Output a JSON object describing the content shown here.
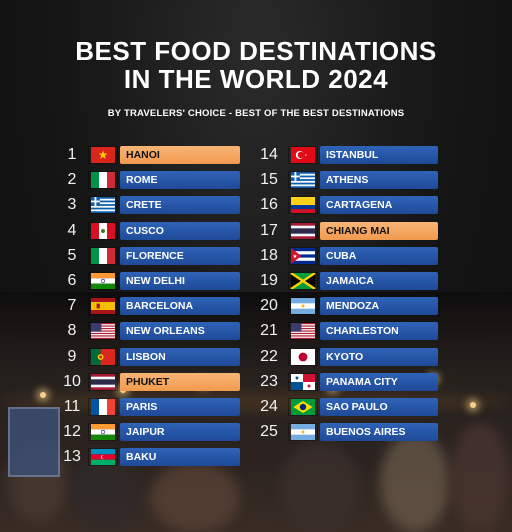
{
  "header": {
    "title_line1": "BEST FOOD DESTINATIONS",
    "title_line2": "IN THE WORLD 2024",
    "subtitle": "BY TRAVELERS' CHOICE - BEST OF THE BEST DESTINATIONS"
  },
  "colors": {
    "bar_default": "#2563b5",
    "bar_highlight": "#f4a45c"
  },
  "left_column": [
    {
      "rank": "1",
      "name": "HANOI",
      "flag_icon": "vietnam-flag-icon",
      "highlight": true
    },
    {
      "rank": "2",
      "name": "ROME",
      "flag_icon": "italy-flag-icon",
      "highlight": false
    },
    {
      "rank": "3",
      "name": "CRETE",
      "flag_icon": "greece-flag-icon",
      "highlight": false
    },
    {
      "rank": "4",
      "name": "CUSCO",
      "flag_icon": "peru-flag-icon",
      "highlight": false
    },
    {
      "rank": "5",
      "name": "FLORENCE",
      "flag_icon": "italy-flag-icon",
      "highlight": false
    },
    {
      "rank": "6",
      "name": "NEW DELHI",
      "flag_icon": "india-flag-icon",
      "highlight": false
    },
    {
      "rank": "7",
      "name": "BARCELONA",
      "flag_icon": "spain-flag-icon",
      "highlight": false
    },
    {
      "rank": "8",
      "name": "NEW ORLEANS",
      "flag_icon": "usa-flag-icon",
      "highlight": false
    },
    {
      "rank": "9",
      "name": "LISBON",
      "flag_icon": "portugal-flag-icon",
      "highlight": false
    },
    {
      "rank": "10",
      "name": "PHUKET",
      "flag_icon": "thailand-flag-icon",
      "highlight": true
    },
    {
      "rank": "11",
      "name": "PARIS",
      "flag_icon": "france-flag-icon",
      "highlight": false
    },
    {
      "rank": "12",
      "name": "JAIPUR",
      "flag_icon": "india-flag-icon",
      "highlight": false
    },
    {
      "rank": "13",
      "name": "BAKU",
      "flag_icon": "azerbaijan-flag-icon",
      "highlight": false
    }
  ],
  "right_column": [
    {
      "rank": "14",
      "name": "ISTANBUL",
      "flag_icon": "turkey-flag-icon",
      "highlight": false
    },
    {
      "rank": "15",
      "name": "ATHENS",
      "flag_icon": "greece-flag-icon",
      "highlight": false
    },
    {
      "rank": "16",
      "name": "CARTAGENA",
      "flag_icon": "colombia-flag-icon",
      "highlight": false
    },
    {
      "rank": "17",
      "name": "CHIANG MAI",
      "flag_icon": "thailand-flag-icon",
      "highlight": true
    },
    {
      "rank": "18",
      "name": "CUBA",
      "flag_icon": "cuba-flag-icon",
      "highlight": false
    },
    {
      "rank": "19",
      "name": "JAMAICA",
      "flag_icon": "jamaica-flag-icon",
      "highlight": false
    },
    {
      "rank": "20",
      "name": "MENDOZA",
      "flag_icon": "argentina-flag-icon",
      "highlight": false
    },
    {
      "rank": "21",
      "name": "CHARLESTON",
      "flag_icon": "usa-flag-icon",
      "highlight": false
    },
    {
      "rank": "22",
      "name": "KYOTO",
      "flag_icon": "japan-flag-icon",
      "highlight": false
    },
    {
      "rank": "23",
      "name": "PANAMA CITY",
      "flag_icon": "panama-flag-icon",
      "highlight": false
    },
    {
      "rank": "24",
      "name": "SAO PAULO",
      "flag_icon": "brazil-flag-icon",
      "highlight": false
    },
    {
      "rank": "25",
      "name": "BUENOS AIRES",
      "flag_icon": "argentina-flag-icon",
      "highlight": false
    }
  ]
}
